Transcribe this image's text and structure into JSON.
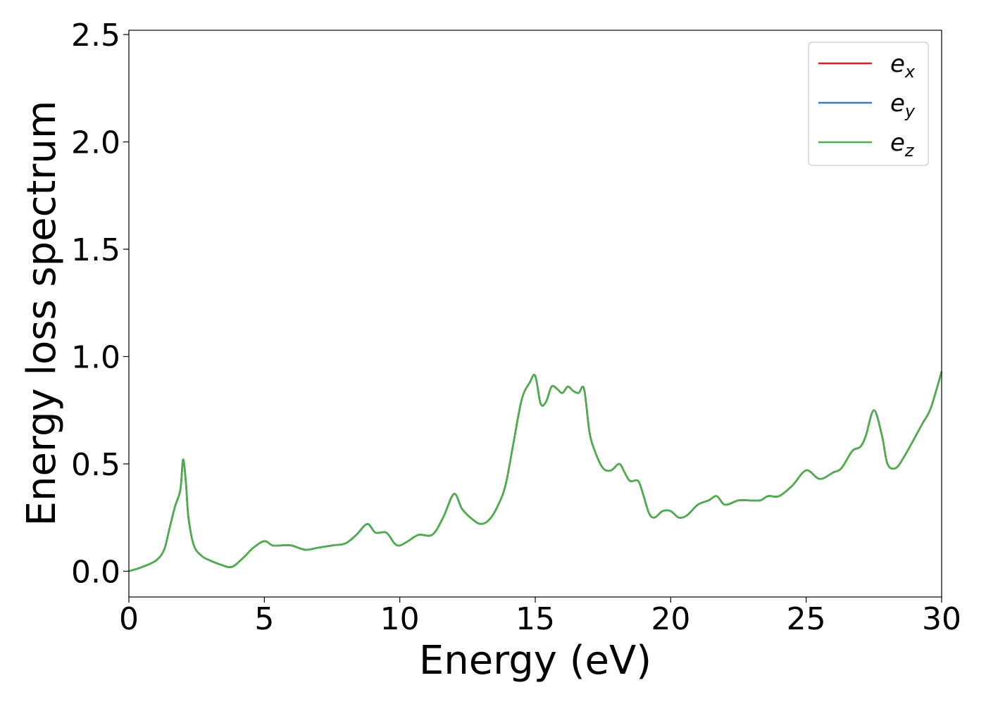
{
  "chart_data": {
    "type": "line",
    "xlabel": "Energy (eV)",
    "ylabel": "Energy loss spectrum",
    "xlim": [
      0,
      30
    ],
    "ylim": [
      -0.12,
      2.52
    ],
    "x_ticks": [
      "0",
      "5",
      "10",
      "15",
      "20",
      "25",
      "30"
    ],
    "y_ticks": [
      "0.0",
      "0.5",
      "1.0",
      "1.5",
      "2.0",
      "2.5"
    ],
    "grid": false,
    "legend_position": "top-right",
    "x": [
      0.0,
      0.5,
      1.0,
      1.3,
      1.5,
      1.7,
      1.9,
      2.0,
      2.1,
      2.2,
      2.4,
      2.7,
      3.0,
      3.4,
      3.8,
      4.2,
      4.6,
      5.0,
      5.3,
      5.6,
      6.0,
      6.5,
      7.0,
      7.5,
      8.0,
      8.4,
      8.8,
      9.1,
      9.5,
      9.8,
      10.0,
      10.3,
      10.7,
      11.2,
      11.6,
      12.0,
      12.3,
      12.7,
      13.0,
      13.3,
      13.6,
      13.9,
      14.2,
      14.5,
      14.8,
      15.0,
      15.2,
      15.4,
      15.6,
      15.8,
      16.0,
      16.2,
      16.4,
      16.6,
      16.8,
      17.0,
      17.2,
      17.5,
      17.8,
      18.1,
      18.3,
      18.5,
      18.8,
      19.0,
      19.2,
      19.4,
      19.7,
      20.0,
      20.3,
      20.6,
      21.0,
      21.4,
      21.7,
      22.0,
      22.5,
      22.9,
      23.3,
      23.6,
      24.0,
      24.5,
      25.0,
      25.5,
      26.0,
      26.3,
      26.7,
      27.0,
      27.2,
      27.5,
      27.8,
      28.0,
      28.3,
      28.6,
      29.0,
      29.3,
      29.6,
      30.0
    ],
    "series": [
      {
        "name": "e_x",
        "label_base": "e",
        "label_sub": "x",
        "color": "#e41a1c",
        "values": [
          0.0,
          0.02,
          0.05,
          0.1,
          0.2,
          0.3,
          0.38,
          0.52,
          0.42,
          0.25,
          0.12,
          0.07,
          0.05,
          0.03,
          0.02,
          0.06,
          0.11,
          0.14,
          0.12,
          0.12,
          0.12,
          0.1,
          0.11,
          0.12,
          0.13,
          0.17,
          0.22,
          0.18,
          0.18,
          0.13,
          0.12,
          0.14,
          0.17,
          0.17,
          0.25,
          0.36,
          0.29,
          0.24,
          0.22,
          0.24,
          0.3,
          0.4,
          0.6,
          0.8,
          0.88,
          0.91,
          0.78,
          0.79,
          0.86,
          0.85,
          0.83,
          0.86,
          0.84,
          0.83,
          0.85,
          0.65,
          0.56,
          0.48,
          0.47,
          0.5,
          0.46,
          0.42,
          0.42,
          0.35,
          0.27,
          0.25,
          0.28,
          0.28,
          0.25,
          0.26,
          0.31,
          0.33,
          0.35,
          0.31,
          0.33,
          0.33,
          0.33,
          0.35,
          0.35,
          0.4,
          0.47,
          0.43,
          0.46,
          0.48,
          0.56,
          0.58,
          0.63,
          0.75,
          0.63,
          0.5,
          0.48,
          0.53,
          0.62,
          0.69,
          0.76,
          0.93
        ]
      },
      {
        "name": "e_y",
        "label_base": "e",
        "label_sub": "y",
        "color": "#377eb8",
        "values": [
          0.0,
          0.02,
          0.05,
          0.1,
          0.2,
          0.3,
          0.38,
          0.52,
          0.42,
          0.25,
          0.12,
          0.07,
          0.05,
          0.03,
          0.02,
          0.06,
          0.11,
          0.14,
          0.12,
          0.12,
          0.12,
          0.1,
          0.11,
          0.12,
          0.13,
          0.17,
          0.22,
          0.18,
          0.18,
          0.13,
          0.12,
          0.14,
          0.17,
          0.17,
          0.25,
          0.36,
          0.29,
          0.24,
          0.22,
          0.24,
          0.3,
          0.4,
          0.6,
          0.8,
          0.88,
          0.91,
          0.78,
          0.79,
          0.86,
          0.85,
          0.83,
          0.86,
          0.84,
          0.83,
          0.85,
          0.65,
          0.56,
          0.48,
          0.47,
          0.5,
          0.46,
          0.42,
          0.42,
          0.35,
          0.27,
          0.25,
          0.28,
          0.28,
          0.25,
          0.26,
          0.31,
          0.33,
          0.35,
          0.31,
          0.33,
          0.33,
          0.33,
          0.35,
          0.35,
          0.4,
          0.47,
          0.43,
          0.46,
          0.48,
          0.56,
          0.58,
          0.63,
          0.75,
          0.63,
          0.5,
          0.48,
          0.53,
          0.62,
          0.69,
          0.76,
          0.93
        ]
      },
      {
        "name": "e_z",
        "label_base": "e",
        "label_sub": "z",
        "color": "#4daf4a",
        "values": [
          0.0,
          0.02,
          0.05,
          0.1,
          0.2,
          0.3,
          0.38,
          0.52,
          0.42,
          0.25,
          0.12,
          0.07,
          0.05,
          0.03,
          0.02,
          0.06,
          0.11,
          0.14,
          0.12,
          0.12,
          0.12,
          0.1,
          0.11,
          0.12,
          0.13,
          0.17,
          0.22,
          0.18,
          0.18,
          0.13,
          0.12,
          0.14,
          0.17,
          0.17,
          0.25,
          0.36,
          0.29,
          0.24,
          0.22,
          0.24,
          0.3,
          0.4,
          0.6,
          0.8,
          0.88,
          0.91,
          0.78,
          0.79,
          0.86,
          0.85,
          0.83,
          0.86,
          0.84,
          0.83,
          0.85,
          0.65,
          0.56,
          0.48,
          0.47,
          0.5,
          0.46,
          0.42,
          0.42,
          0.35,
          0.27,
          0.25,
          0.28,
          0.28,
          0.25,
          0.26,
          0.31,
          0.33,
          0.35,
          0.31,
          0.33,
          0.33,
          0.33,
          0.35,
          0.35,
          0.4,
          0.47,
          0.43,
          0.46,
          0.48,
          0.56,
          0.58,
          0.63,
          0.75,
          0.63,
          0.5,
          0.48,
          0.53,
          0.62,
          0.69,
          0.76,
          0.93
        ]
      }
    ]
  }
}
